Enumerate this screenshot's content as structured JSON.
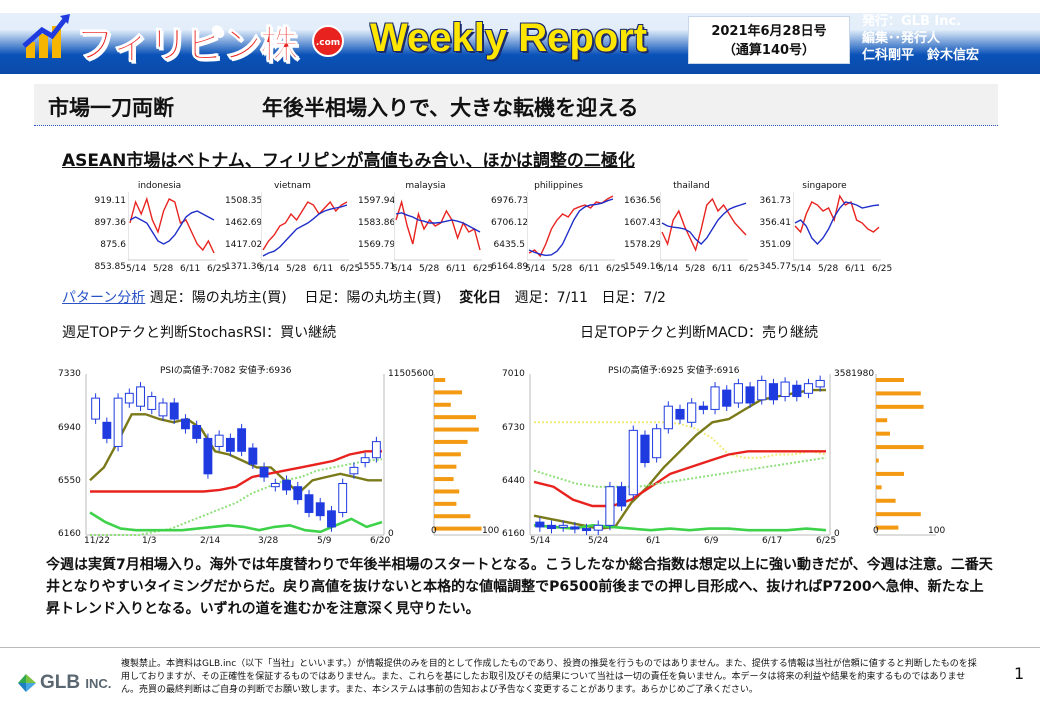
{
  "header": {
    "brand": "フィリピン株",
    "brand_badge": ".com",
    "report": "Weekly Report",
    "issue_date": "2021年6月28日号",
    "issue_no": "（通算140号）",
    "publisher": "発行：GLB Inc.",
    "editor_role": "編集･･発行人",
    "editors": "仁科剛平　鈴木信宏"
  },
  "section": {
    "label": "市場一刀両断",
    "headline": "年後半相場入りで、大きな転機を迎える",
    "subheading": "ASEAN市場はベトナム、フィリピンが高値もみ合い、ほかは調整の二極化"
  },
  "mini_x_ticks": [
    "5/14",
    "5/28",
    "6/11",
    "6/25"
  ],
  "chart_data": [
    {
      "type": "line",
      "title": "indonesia",
      "y_ticks": [
        "919.11",
        "897.36",
        "875.6",
        "853.85"
      ],
      "series": [
        {
          "color": "#e8231f",
          "values": [
            0.55,
            0.9,
            0.7,
            0.95,
            0.6,
            0.4,
            0.75,
            0.95,
            0.9,
            0.55,
            0.6,
            0.4,
            0.2,
            0.1,
            0.25,
            0.05
          ]
        },
        {
          "color": "#1f2ec8",
          "values": [
            0.6,
            0.65,
            0.6,
            0.55,
            0.4,
            0.25,
            0.2,
            0.25,
            0.35,
            0.5,
            0.65,
            0.72,
            0.75,
            0.7,
            0.65,
            0.6
          ]
        }
      ]
    },
    {
      "type": "line",
      "title": "vietnam",
      "y_ticks": [
        "1508.35",
        "1462.69",
        "1417.02",
        "1371.36"
      ],
      "series": [
        {
          "color": "#e8231f",
          "values": [
            0.1,
            0.25,
            0.35,
            0.5,
            0.55,
            0.7,
            0.6,
            0.75,
            0.9,
            0.85,
            0.7,
            0.8,
            0.9,
            0.75,
            0.85,
            0.9
          ]
        },
        {
          "color": "#1f2ec8",
          "values": [
            0.0,
            0.05,
            0.08,
            0.15,
            0.25,
            0.35,
            0.45,
            0.5,
            0.55,
            0.62,
            0.7,
            0.75,
            0.78,
            0.8,
            0.82,
            0.85
          ]
        }
      ]
    },
    {
      "type": "line",
      "title": "malaysia",
      "y_ticks": [
        "1597.94",
        "1583.86",
        "1569.79",
        "1555.71"
      ],
      "series": [
        {
          "color": "#e8231f",
          "values": [
            0.6,
            0.9,
            0.5,
            0.2,
            0.7,
            0.45,
            0.6,
            0.5,
            0.55,
            0.75,
            0.6,
            0.3,
            0.55,
            0.4,
            0.45,
            0.1
          ]
        },
        {
          "color": "#1f2ec8",
          "values": [
            0.7,
            0.72,
            0.68,
            0.65,
            0.6,
            0.58,
            0.55,
            0.55,
            0.56,
            0.58,
            0.6,
            0.58,
            0.55,
            0.5,
            0.45,
            0.4
          ]
        }
      ]
    },
    {
      "type": "line",
      "title": "philippines",
      "y_ticks": [
        "6976.73",
        "6706.12",
        "6435.5",
        "6164.89"
      ],
      "series": [
        {
          "color": "#e8231f",
          "values": [
            0.05,
            0.1,
            0.0,
            0.2,
            0.45,
            0.6,
            0.7,
            0.65,
            0.78,
            0.82,
            0.85,
            0.8,
            0.9,
            0.88,
            0.95,
            1.0
          ]
        },
        {
          "color": "#1f2ec8",
          "values": [
            0.1,
            0.06,
            0.03,
            0.01,
            0.02,
            0.08,
            0.2,
            0.4,
            0.6,
            0.75,
            0.82,
            0.85,
            0.86,
            0.88,
            0.92,
            0.95
          ]
        }
      ]
    },
    {
      "type": "line",
      "title": "thailand",
      "y_ticks": [
        "1636.56",
        "1607.43",
        "1578.29",
        "1549.16"
      ],
      "series": [
        {
          "color": "#e8231f",
          "values": [
            0.4,
            0.2,
            0.6,
            0.75,
            0.5,
            0.3,
            0.1,
            0.45,
            0.85,
            0.95,
            0.75,
            0.85,
            0.7,
            0.55,
            0.45,
            0.35
          ]
        },
        {
          "color": "#1f2ec8",
          "values": [
            0.55,
            0.5,
            0.48,
            0.47,
            0.45,
            0.4,
            0.28,
            0.2,
            0.3,
            0.45,
            0.6,
            0.7,
            0.78,
            0.82,
            0.85,
            0.88
          ]
        }
      ]
    },
    {
      "type": "line",
      "title": "singapore",
      "y_ticks": [
        "361.73",
        "356.41",
        "351.09",
        "345.77"
      ],
      "series": [
        {
          "color": "#e8231f",
          "values": [
            0.5,
            0.4,
            0.7,
            0.9,
            0.85,
            0.75,
            0.8,
            0.6,
            1.0,
            0.85,
            0.9,
            0.6,
            0.55,
            0.45,
            0.4,
            0.48
          ]
        },
        {
          "color": "#1f2ec8",
          "values": [
            0.55,
            0.6,
            0.5,
            0.3,
            0.2,
            0.3,
            0.45,
            0.65,
            0.8,
            0.9,
            0.88,
            0.85,
            0.8,
            0.82,
            0.84,
            0.85
          ]
        }
      ]
    }
  ],
  "pattern": {
    "link": "パターン分析",
    "weekly": "週足：陽の丸坊主(買)",
    "daily": "日足：陽の丸坊主(買)",
    "change_label": "変化日",
    "change_weekly": "週足：7/11",
    "change_daily": "日足：7/2"
  },
  "charts": {
    "weekly_title": "週足TOPテクと判断StochasRSI：買い継続",
    "daily_title": "日足TOPテクと判断MACD：売り継続",
    "weekly": {
      "caption": "PSIの高値予:7082 安値予:6936",
      "y_ticks": [
        "7330",
        "6940",
        "6550",
        "6160"
      ],
      "x_ticks": [
        "11/22",
        "1/3",
        "2/14",
        "3/28",
        "5/9",
        "6/20"
      ],
      "right_ticks": [
        "11505600",
        "0"
      ],
      "hist_ticks": [
        "0",
        "100"
      ],
      "hist": [
        20,
        50,
        30,
        75,
        80,
        60,
        48,
        40,
        35,
        45,
        40,
        65,
        85
      ]
    },
    "daily": {
      "caption": "PSIの高値予:6925 安値予:6916",
      "y_ticks": [
        "7010",
        "6730",
        "6440",
        "6160"
      ],
      "x_ticks": [
        "5/14",
        "5/24",
        "6/1",
        "6/9",
        "6/17",
        "6/25"
      ],
      "right_ticks": [
        "3581980",
        "0"
      ],
      "hist_ticks": [
        "0",
        "100"
      ],
      "hist": [
        50,
        80,
        85,
        20,
        25,
        85,
        5,
        50,
        10,
        35,
        80,
        40
      ]
    }
  },
  "body": "今週は実質7月相場入り。海外では年度替わりで年後半相場のスタートとなる。こうしたなか総合指数は想定以上に強い動きだが、今週は注意。二番天井となりやすいタイミングだからだ。戻り高値を抜けないと本格的な値幅調整でP6500前後までの押し目形成へ、抜ければP7200へ急伸、新たな上昇トレンド入りとなる。いずれの道を進むかを注意深く見守りたい。",
  "footer": {
    "company": "GLB",
    "company_suffix": "INC.",
    "disclaimer": "複製禁止。本資料はGLB.inc（以下「当社」といいます。）が情報提供のみを目的として作成したものであり、投資の推奨を行うものではありません。また、提供する情報は当社が信頼に値すると判断したものを採用しておりますが、その正確性を保証するものではありません。また、これらを基にしたお取引及びその結果について当社は一切の責任を負いません。本データは将来の利益や結果を約束するものではありません。売買の最終判断はご自身の判断でお願い致します。また、本システムは事前の告知および予告なく変更することがあります。あらかじめご了承ください。",
    "page": "1"
  },
  "colors": {
    "brand_red": "#e8231f",
    "header_blue": "#0b4aa8",
    "report_yellow": "#ffe600",
    "hist_orange": "#f39a12",
    "candle_blue": "#1f3be0"
  }
}
